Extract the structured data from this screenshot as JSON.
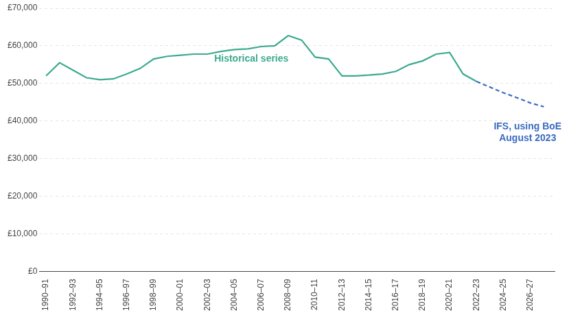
{
  "chart_data": {
    "type": "line",
    "series": [
      {
        "color": "#3aaa8e",
        "line_style": "solid",
        "x": [
          1990,
          1991,
          1992,
          1993,
          1994,
          1995,
          1996,
          1997,
          1998,
          1999,
          2000,
          2001,
          2002,
          2003,
          2004,
          2005,
          2006,
          2007,
          2008,
          2009,
          2010,
          2011,
          2012,
          2013,
          2014,
          2015,
          2016,
          2017,
          2018,
          2019,
          2020,
          2021,
          2022
        ],
        "values": [
          52000,
          55500,
          53500,
          51500,
          51000,
          51200,
          52500,
          54000,
          56500,
          57200,
          57500,
          57800,
          57800,
          58500,
          59000,
          59200,
          59800,
          60000,
          62700,
          61500,
          57000,
          56500,
          52000,
          52000,
          52200,
          52500,
          53200,
          55000,
          56000,
          57800,
          58200,
          52500,
          50500
        ]
      },
      {
        "color": "#3a6bbf",
        "line_style": "dashed",
        "x": [
          2022,
          2023,
          2024,
          2025,
          2026,
          2027
        ],
        "values": [
          50500,
          49000,
          47500,
          46200,
          44800,
          43800
        ]
      }
    ],
    "annotations": [
      {
        "text": "Historical series",
        "x": 2002.5,
        "y": 56500,
        "color": "#3aaa8e"
      },
      {
        "text": "IFS, using BoE\nAugust 2023",
        "x": 2025.8,
        "y": 37000,
        "color": "#3a6bbf"
      }
    ],
    "xlim": [
      1989.5,
      2027.8
    ],
    "xticks": [
      {
        "value": 1990,
        "label": "1990–91"
      },
      {
        "value": 1992,
        "label": "1992–93"
      },
      {
        "value": 1994,
        "label": "1994–95"
      },
      {
        "value": 1996,
        "label": "1996–97"
      },
      {
        "value": 1998,
        "label": "1998–99"
      },
      {
        "value": 2000,
        "label": "2000–01"
      },
      {
        "value": 2002,
        "label": "2002–03"
      },
      {
        "value": 2004,
        "label": "2004–05"
      },
      {
        "value": 2006,
        "label": "2006–07"
      },
      {
        "value": 2008,
        "label": "2008–09"
      },
      {
        "value": 2010,
        "label": "2010–11"
      },
      {
        "value": 2012,
        "label": "2012–13"
      },
      {
        "value": 2014,
        "label": "2014–15"
      },
      {
        "value": 2016,
        "label": "2016–17"
      },
      {
        "value": 2018,
        "label": "2018–19"
      },
      {
        "value": 2020,
        "label": "2020–21"
      },
      {
        "value": 2022,
        "label": "2022–23"
      },
      {
        "value": 2024,
        "label": "2024–25"
      },
      {
        "value": 2026,
        "label": "2026–27"
      }
    ],
    "ylim": [
      0,
      70000
    ],
    "yticks": [
      {
        "value": 0,
        "label": "£0"
      },
      {
        "value": 10000,
        "label": "£10,000"
      },
      {
        "value": 20000,
        "label": "£20,000"
      },
      {
        "value": 30000,
        "label": "£30,000"
      },
      {
        "value": 40000,
        "label": "£40,000"
      },
      {
        "value": 50000,
        "label": "£50,000"
      },
      {
        "value": 60000,
        "label": "£60,000"
      },
      {
        "value": 70000,
        "label": "£70,000"
      }
    ],
    "grid": true
  }
}
